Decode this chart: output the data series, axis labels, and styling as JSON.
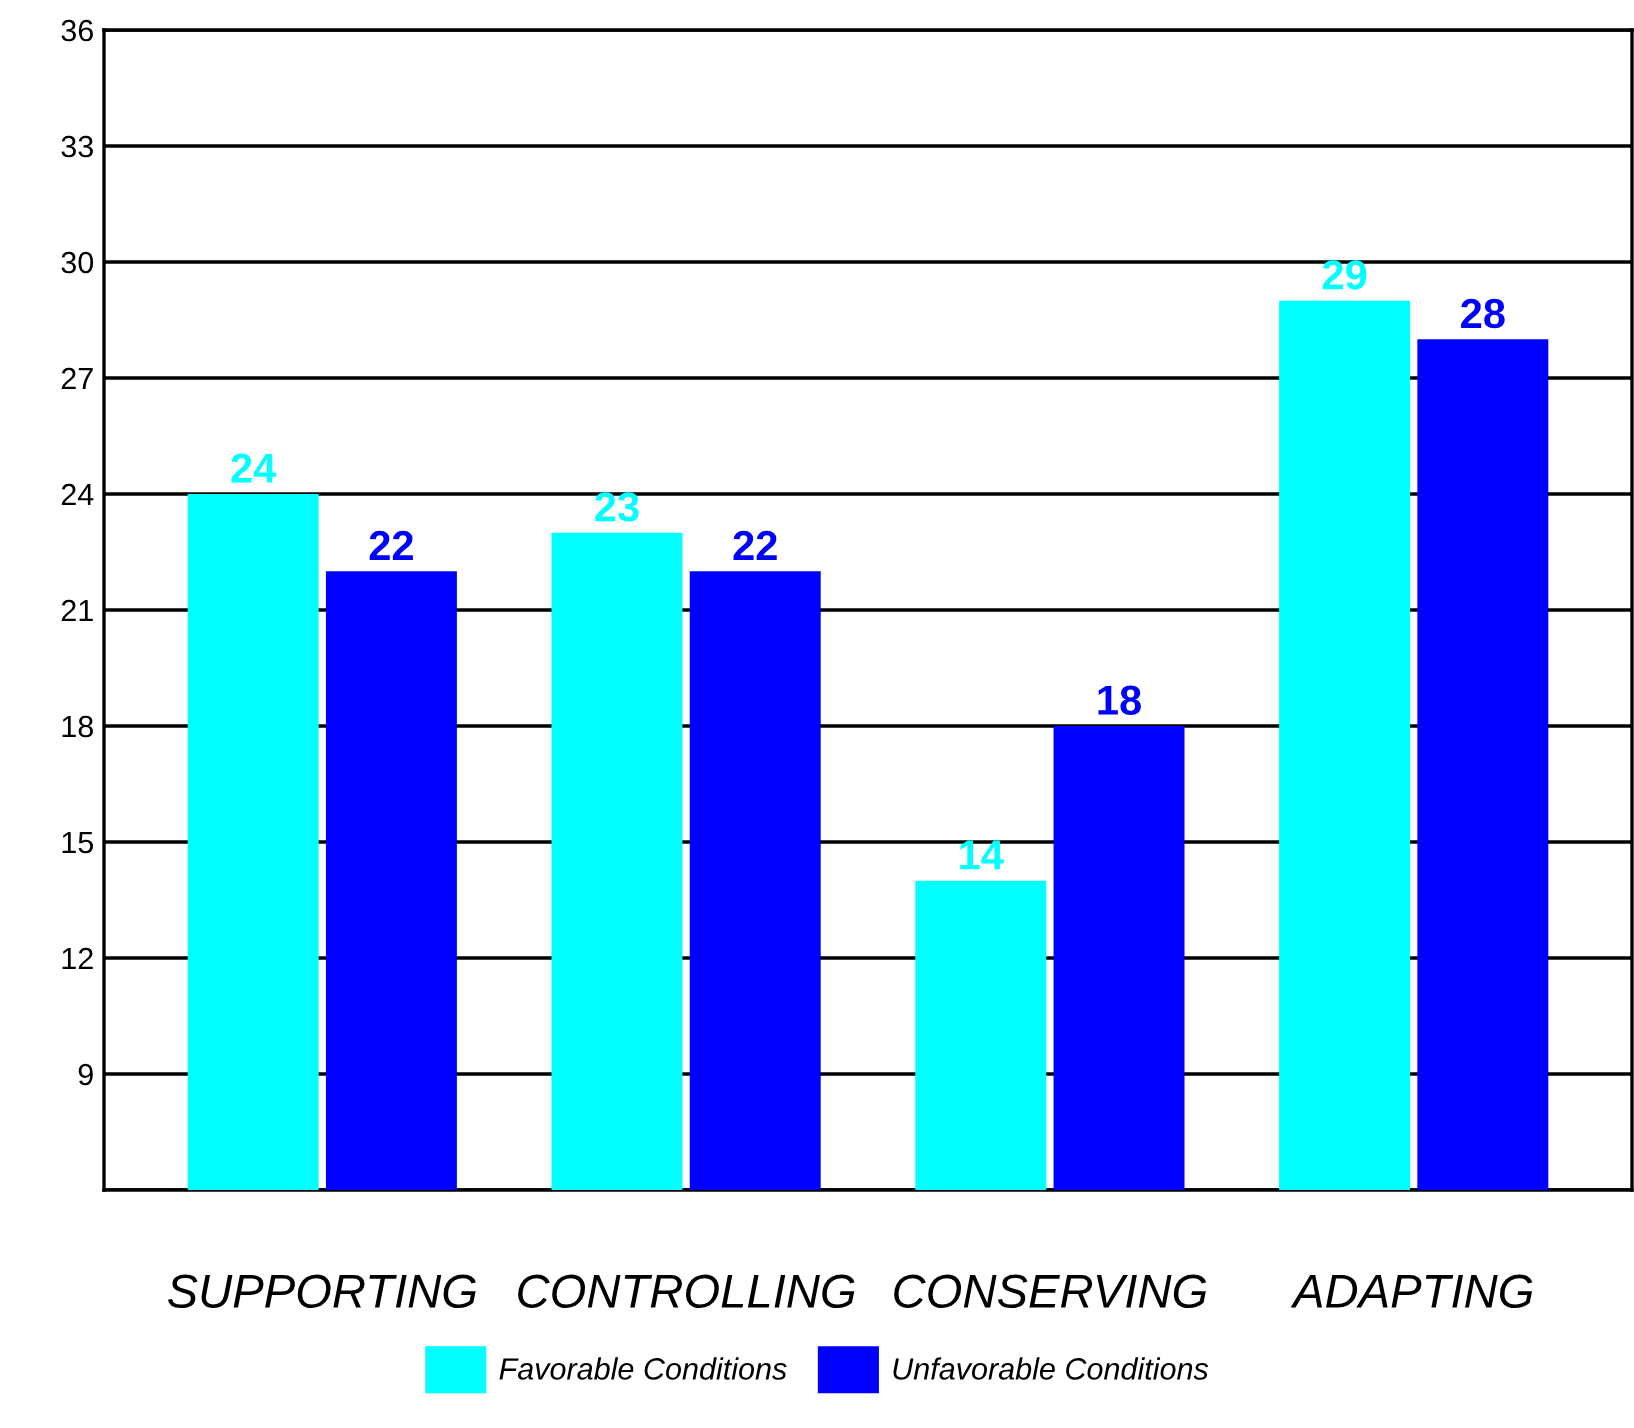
{
  "chart_data": {
    "type": "bar",
    "categories": [
      "SUPPORTING",
      "CONTROLLING",
      "CONSERVING",
      "ADAPTING"
    ],
    "series": [
      {
        "name": "Favorable Conditions",
        "color": "#00ffff",
        "values": [
          24,
          23,
          14,
          29
        ]
      },
      {
        "name": "Unfavorable Conditions",
        "color": "#0000ff",
        "values": [
          22,
          22,
          18,
          28
        ]
      }
    ],
    "ylim": [
      6,
      36
    ],
    "yticks": [
      {
        "value": 6,
        "label": null
      },
      9,
      12,
      15,
      18,
      21,
      24,
      27,
      30,
      33,
      36
    ],
    "grid": "y",
    "data_labels": true,
    "legend": "bottom"
  }
}
